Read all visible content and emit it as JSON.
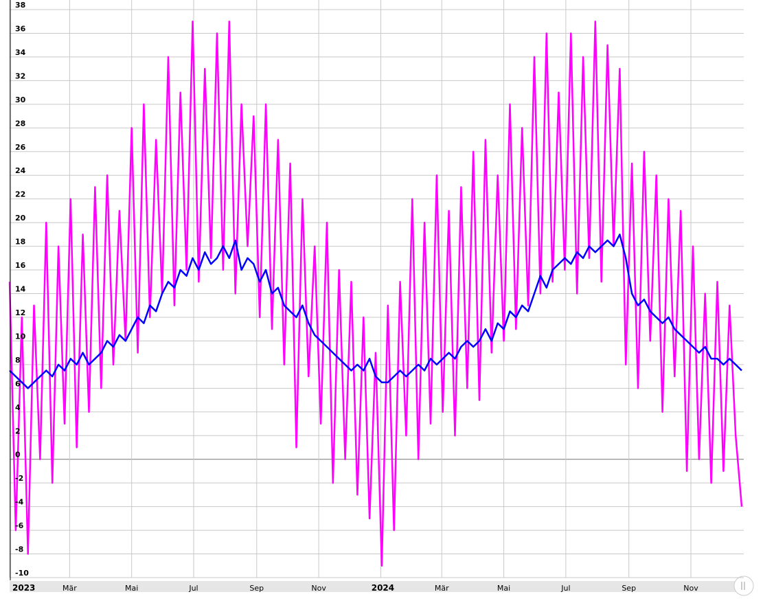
{
  "chart_data": {
    "type": "line",
    "x": [
      0,
      6,
      12,
      18,
      24,
      30,
      36,
      42,
      48,
      54,
      60,
      66,
      72,
      78,
      84,
      90,
      96,
      102,
      108,
      114,
      120,
      126,
      132,
      138,
      144,
      150,
      156,
      162,
      168,
      174,
      180,
      186,
      192,
      198,
      204,
      210,
      216,
      222,
      228,
      234,
      240,
      246,
      252,
      258,
      264,
      270,
      276,
      282,
      288,
      294,
      300,
      306,
      312,
      318,
      324,
      330,
      336,
      342,
      348,
      354,
      360,
      366,
      372,
      378,
      384,
      390,
      396,
      402,
      408,
      414,
      420,
      426,
      432,
      438,
      444,
      450,
      456,
      462,
      468,
      474,
      480,
      486,
      492,
      498,
      504,
      510,
      516,
      522,
      528,
      534,
      540,
      546,
      552,
      558,
      564,
      570,
      576,
      582,
      588,
      594,
      600,
      606,
      612,
      618,
      624,
      630,
      636,
      642,
      648,
      654,
      660,
      666,
      672,
      678,
      684,
      690,
      696,
      702,
      708,
      714,
      720
    ],
    "series": [
      {
        "color": "#ff00ff",
        "values": [
          15,
          -6,
          12,
          -8,
          13,
          0,
          20,
          -2,
          18,
          3,
          22,
          1,
          19,
          4,
          23,
          6,
          24,
          8,
          21,
          10,
          28,
          9,
          30,
          12,
          27,
          14,
          34,
          13,
          31,
          16,
          37,
          15,
          33,
          17,
          36,
          16,
          37,
          14,
          30,
          18,
          29,
          12,
          30,
          11,
          27,
          8,
          25,
          1,
          22,
          7,
          18,
          3,
          20,
          -2,
          16,
          0,
          15,
          -3,
          12,
          -5,
          9,
          -9,
          13,
          -6,
          15,
          2,
          22,
          0,
          20,
          3,
          24,
          4,
          21,
          2,
          23,
          6,
          26,
          5,
          27,
          9,
          24,
          10,
          30,
          11,
          28,
          13,
          34,
          14,
          36,
          15,
          31,
          16,
          36,
          14,
          34,
          17,
          37,
          15,
          35,
          18,
          33,
          8,
          25,
          6,
          26,
          10,
          24,
          4,
          22,
          7,
          21,
          -1,
          18,
          0,
          14,
          -2,
          15,
          -1,
          13,
          2,
          -4
        ]
      },
      {
        "color": "#0000ff",
        "values": [
          7.5,
          7,
          6.5,
          6,
          6.5,
          7,
          7.5,
          7,
          8,
          7.5,
          8.5,
          8,
          9,
          8,
          8.5,
          9,
          10,
          9.5,
          10.5,
          10,
          11,
          12,
          11.5,
          13,
          12.5,
          14,
          15,
          14.5,
          16,
          15.5,
          17,
          16,
          17.5,
          16.5,
          17,
          18,
          17,
          18.5,
          16,
          17,
          16.5,
          15,
          16,
          14,
          14.5,
          13,
          12.5,
          12,
          13,
          11.5,
          10.5,
          10,
          9.5,
          9,
          8.5,
          8,
          7.5,
          8,
          7.5,
          8.5,
          7,
          6.5,
          6.5,
          7,
          7.5,
          7,
          7.5,
          8,
          7.5,
          8.5,
          8,
          8.5,
          9,
          8.5,
          9.5,
          10,
          9.5,
          10,
          11,
          10,
          11.5,
          11,
          12.5,
          12,
          13,
          12.5,
          14,
          15.5,
          14.5,
          16,
          16.5,
          17,
          16.5,
          17.5,
          17,
          18,
          17.5,
          18,
          18.5,
          18,
          19,
          17,
          14,
          13,
          13.5,
          12.5,
          12,
          11.5,
          12,
          11,
          10.5,
          10,
          9.5,
          9,
          9.5,
          8.5,
          8.5,
          8,
          8.5,
          8,
          7.5
        ]
      }
    ],
    "xlim": [
      0,
      722
    ],
    "xticks": [
      {
        "value": 0,
        "label": "2023"
      },
      {
        "value": 59,
        "label": "Mär"
      },
      {
        "value": 120,
        "label": "Mai"
      },
      {
        "value": 181,
        "label": "Jul"
      },
      {
        "value": 243,
        "label": "Sep"
      },
      {
        "value": 304,
        "label": "Nov"
      },
      {
        "value": 365,
        "label": "2024"
      },
      {
        "value": 425,
        "label": "Mär"
      },
      {
        "value": 486,
        "label": "Mai"
      },
      {
        "value": 547,
        "label": "Jul"
      },
      {
        "value": 609,
        "label": "Sep"
      },
      {
        "value": 670,
        "label": "Nov"
      }
    ],
    "ylim": [
      -10,
      38
    ],
    "yticks": [
      -10,
      -8,
      -6,
      -4,
      -2,
      0,
      2,
      4,
      6,
      8,
      10,
      12,
      14,
      16,
      18,
      20,
      22,
      24,
      26,
      28,
      30,
      32,
      34,
      36,
      38
    ],
    "grid": true
  }
}
